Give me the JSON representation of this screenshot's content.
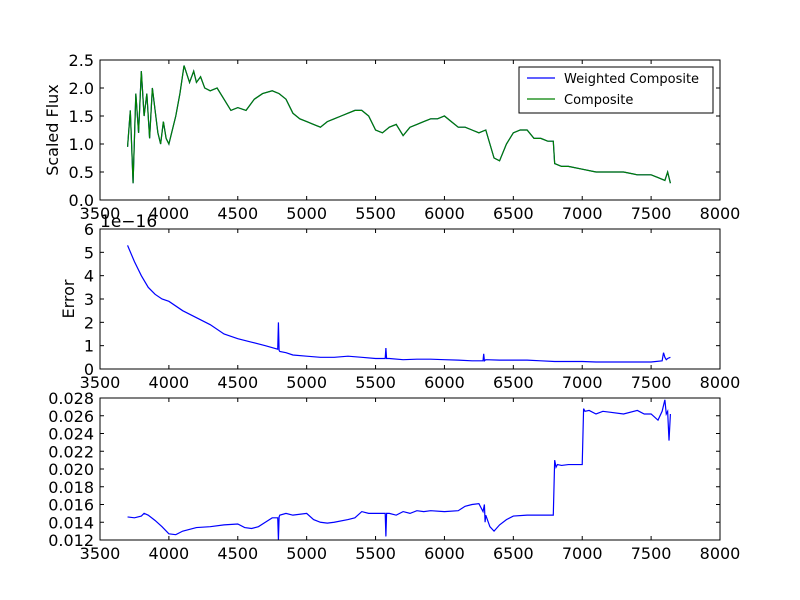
{
  "chart_data": [
    {
      "type": "line",
      "title": "",
      "xlabel": "",
      "ylabel": "Scaled Flux",
      "xlim": [
        3500,
        8000
      ],
      "ylim": [
        0.0,
        2.5
      ],
      "xticks": [
        3500,
        4000,
        4500,
        5000,
        5500,
        6000,
        6500,
        7000,
        7500,
        8000
      ],
      "yticks": [
        0.0,
        0.5,
        1.0,
        1.5,
        2.0,
        2.5
      ],
      "xtick_labels": [
        "3500",
        "4000",
        "4500",
        "5000",
        "5500",
        "6000",
        "6500",
        "7000",
        "7500",
        "8000"
      ],
      "ytick_labels": [
        "0.0",
        "0.5",
        "1.0",
        "1.5",
        "2.0",
        "2.5"
      ],
      "legend": {
        "position": "top-right",
        "entries": [
          "Weighted Composite",
          "Composite"
        ]
      },
      "grid": false,
      "series": [
        {
          "name": "Weighted Composite",
          "color": "#0000ff",
          "x": [
            3700,
            3720,
            3740,
            3760,
            3780,
            3800,
            3820,
            3840,
            3860,
            3880,
            3900,
            3920,
            3940,
            3960,
            3980,
            4000,
            4020,
            4050,
            4080,
            4110,
            4150,
            4180,
            4200,
            4230,
            4260,
            4300,
            4350,
            4400,
            4450,
            4500,
            4560,
            4620,
            4680,
            4750,
            4800,
            4850,
            4900,
            4950,
            5000,
            5050,
            5100,
            5150,
            5200,
            5250,
            5300,
            5350,
            5400,
            5450,
            5500,
            5550,
            5600,
            5650,
            5700,
            5750,
            5800,
            5850,
            5900,
            5950,
            6000,
            6050,
            6100,
            6150,
            6200,
            6250,
            6300,
            6330,
            6360,
            6400,
            6450,
            6500,
            6550,
            6600,
            6650,
            6700,
            6750,
            6790,
            6800,
            6850,
            6900,
            7000,
            7100,
            7200,
            7300,
            7400,
            7500,
            7550,
            7600,
            7620,
            7640
          ],
          "y": [
            0.95,
            1.6,
            0.3,
            1.9,
            1.2,
            2.3,
            1.5,
            1.9,
            1.1,
            2.0,
            1.6,
            1.2,
            1.0,
            1.4,
            1.1,
            1.0,
            1.2,
            1.5,
            1.9,
            2.4,
            2.1,
            2.3,
            2.1,
            2.2,
            2.0,
            1.95,
            2.0,
            1.8,
            1.6,
            1.65,
            1.6,
            1.8,
            1.9,
            1.95,
            1.9,
            1.8,
            1.55,
            1.45,
            1.4,
            1.35,
            1.3,
            1.4,
            1.45,
            1.5,
            1.55,
            1.6,
            1.6,
            1.5,
            1.25,
            1.2,
            1.3,
            1.35,
            1.15,
            1.3,
            1.35,
            1.4,
            1.45,
            1.45,
            1.5,
            1.4,
            1.3,
            1.3,
            1.25,
            1.2,
            1.25,
            1.0,
            0.75,
            0.7,
            1.0,
            1.2,
            1.25,
            1.25,
            1.1,
            1.1,
            1.05,
            1.05,
            0.65,
            0.6,
            0.6,
            0.55,
            0.5,
            0.5,
            0.5,
            0.45,
            0.45,
            0.4,
            0.35,
            0.5,
            0.3
          ]
        },
        {
          "name": "Composite",
          "color": "#008000",
          "x": [
            3700,
            3720,
            3740,
            3760,
            3780,
            3800,
            3820,
            3840,
            3860,
            3880,
            3900,
            3920,
            3940,
            3960,
            3980,
            4000,
            4020,
            4050,
            4080,
            4110,
            4150,
            4180,
            4200,
            4230,
            4260,
            4300,
            4350,
            4400,
            4450,
            4500,
            4560,
            4620,
            4680,
            4750,
            4800,
            4850,
            4900,
            4950,
            5000,
            5050,
            5100,
            5150,
            5200,
            5250,
            5300,
            5350,
            5400,
            5450,
            5500,
            5550,
            5600,
            5650,
            5700,
            5750,
            5800,
            5850,
            5900,
            5950,
            6000,
            6050,
            6100,
            6150,
            6200,
            6250,
            6300,
            6330,
            6360,
            6400,
            6450,
            6500,
            6550,
            6600,
            6650,
            6700,
            6750,
            6790,
            6800,
            6850,
            6900,
            7000,
            7100,
            7200,
            7300,
            7400,
            7500,
            7550,
            7600,
            7620,
            7640
          ],
          "y": [
            0.95,
            1.6,
            0.3,
            1.9,
            1.2,
            2.3,
            1.5,
            1.9,
            1.1,
            2.0,
            1.6,
            1.2,
            1.0,
            1.4,
            1.1,
            1.0,
            1.2,
            1.5,
            1.9,
            2.4,
            2.1,
            2.3,
            2.1,
            2.2,
            2.0,
            1.95,
            2.0,
            1.8,
            1.6,
            1.65,
            1.6,
            1.8,
            1.9,
            1.95,
            1.9,
            1.8,
            1.55,
            1.45,
            1.4,
            1.35,
            1.3,
            1.4,
            1.45,
            1.5,
            1.55,
            1.6,
            1.6,
            1.5,
            1.25,
            1.2,
            1.3,
            1.35,
            1.15,
            1.3,
            1.35,
            1.4,
            1.45,
            1.45,
            1.5,
            1.4,
            1.3,
            1.3,
            1.25,
            1.2,
            1.25,
            1.0,
            0.75,
            0.7,
            1.0,
            1.2,
            1.25,
            1.25,
            1.1,
            1.1,
            1.05,
            1.05,
            0.65,
            0.6,
            0.6,
            0.55,
            0.5,
            0.5,
            0.5,
            0.45,
            0.45,
            0.4,
            0.35,
            0.5,
            0.3
          ]
        }
      ]
    },
    {
      "type": "line",
      "title": "",
      "xlabel": "",
      "ylabel": "Error",
      "offset_text": "1e−16",
      "xlim": [
        3500,
        8000
      ],
      "ylim": [
        0,
        6
      ],
      "xticks": [
        3500,
        4000,
        4500,
        5000,
        5500,
        6000,
        6500,
        7000,
        7500,
        8000
      ],
      "yticks": [
        0,
        1,
        2,
        3,
        4,
        5,
        6
      ],
      "xtick_labels": [
        "3500",
        "4000",
        "4500",
        "5000",
        "5500",
        "6000",
        "6500",
        "7000",
        "7500",
        "8000"
      ],
      "ytick_labels": [
        "0",
        "1",
        "2",
        "3",
        "4",
        "5",
        "6"
      ],
      "grid": false,
      "series": [
        {
          "color": "#0000ff",
          "x": [
            3700,
            3750,
            3800,
            3850,
            3900,
            3950,
            4000,
            4100,
            4200,
            4300,
            4400,
            4500,
            4600,
            4700,
            4790,
            4795,
            4800,
            4805,
            4850,
            4900,
            5000,
            5100,
            5200,
            5300,
            5400,
            5500,
            5570,
            5575,
            5580,
            5600,
            5700,
            5800,
            5900,
            6000,
            6100,
            6200,
            6280,
            6285,
            6290,
            6300,
            6400,
            6500,
            6600,
            6700,
            6800,
            6900,
            7000,
            7100,
            7200,
            7300,
            7400,
            7500,
            7580,
            7590,
            7600,
            7610,
            7620,
            7640
          ],
          "y": [
            5.3,
            4.6,
            4.0,
            3.5,
            3.2,
            3.0,
            2.9,
            2.5,
            2.2,
            1.9,
            1.5,
            1.3,
            1.15,
            1.0,
            0.85,
            2.0,
            0.8,
            0.75,
            0.7,
            0.6,
            0.55,
            0.5,
            0.5,
            0.55,
            0.5,
            0.45,
            0.45,
            0.9,
            0.45,
            0.45,
            0.4,
            0.42,
            0.42,
            0.4,
            0.38,
            0.35,
            0.35,
            0.65,
            0.35,
            0.4,
            0.38,
            0.38,
            0.38,
            0.35,
            0.32,
            0.32,
            0.32,
            0.3,
            0.3,
            0.3,
            0.3,
            0.3,
            0.35,
            0.7,
            0.5,
            0.4,
            0.45,
            0.5
          ]
        }
      ]
    },
    {
      "type": "line",
      "title": "",
      "xlabel": "",
      "ylabel": "",
      "xlim": [
        3500,
        8000
      ],
      "ylim": [
        0.012,
        0.028
      ],
      "xticks": [
        3500,
        4000,
        4500,
        5000,
        5500,
        6000,
        6500,
        7000,
        7500,
        8000
      ],
      "yticks": [
        0.012,
        0.014,
        0.016,
        0.018,
        0.02,
        0.022,
        0.024,
        0.026,
        0.028
      ],
      "xtick_labels": [
        "3500",
        "4000",
        "4500",
        "5000",
        "5500",
        "6000",
        "6500",
        "7000",
        "7500",
        "8000"
      ],
      "ytick_labels": [
        "0.012",
        "0.014",
        "0.016",
        "0.018",
        "0.020",
        "0.022",
        "0.024",
        "0.026",
        "0.028"
      ],
      "grid": false,
      "series": [
        {
          "color": "#0000ff",
          "x": [
            3700,
            3750,
            3800,
            3820,
            3850,
            3900,
            3950,
            4000,
            4050,
            4100,
            4200,
            4300,
            4400,
            4500,
            4550,
            4600,
            4650,
            4700,
            4750,
            4790,
            4795,
            4800,
            4805,
            4850,
            4900,
            5000,
            5050,
            5100,
            5150,
            5200,
            5300,
            5350,
            5400,
            5450,
            5500,
            5550,
            5570,
            5575,
            5580,
            5600,
            5650,
            5700,
            5750,
            5800,
            5850,
            5900,
            6000,
            6100,
            6150,
            6200,
            6250,
            6280,
            6290,
            6295,
            6300,
            6330,
            6360,
            6400,
            6450,
            6500,
            6600,
            6700,
            6790,
            6800,
            6810,
            6820,
            6850,
            6900,
            6950,
            7000,
            7010,
            7020,
            7050,
            7100,
            7150,
            7200,
            7300,
            7400,
            7450,
            7500,
            7550,
            7580,
            7600,
            7610,
            7620,
            7630,
            7640
          ],
          "y": [
            0.0146,
            0.0145,
            0.0147,
            0.015,
            0.0148,
            0.0142,
            0.0135,
            0.0127,
            0.0126,
            0.013,
            0.0134,
            0.0135,
            0.0137,
            0.0138,
            0.0134,
            0.0133,
            0.0135,
            0.014,
            0.0145,
            0.0145,
            0.012,
            0.0146,
            0.0148,
            0.015,
            0.0148,
            0.015,
            0.0143,
            0.014,
            0.0139,
            0.014,
            0.0143,
            0.0145,
            0.0152,
            0.015,
            0.015,
            0.015,
            0.015,
            0.0124,
            0.015,
            0.015,
            0.0148,
            0.0152,
            0.015,
            0.0153,
            0.0152,
            0.0153,
            0.0152,
            0.0153,
            0.0158,
            0.016,
            0.0161,
            0.0152,
            0.016,
            0.014,
            0.0148,
            0.0135,
            0.013,
            0.0137,
            0.0143,
            0.0147,
            0.0148,
            0.0148,
            0.0148,
            0.021,
            0.0202,
            0.0205,
            0.0204,
            0.0205,
            0.0205,
            0.0205,
            0.0268,
            0.0265,
            0.0266,
            0.0262,
            0.0265,
            0.0264,
            0.0262,
            0.0266,
            0.0262,
            0.0262,
            0.0255,
            0.0265,
            0.0278,
            0.0262,
            0.0265,
            0.0232,
            0.0262
          ]
        }
      ]
    }
  ]
}
